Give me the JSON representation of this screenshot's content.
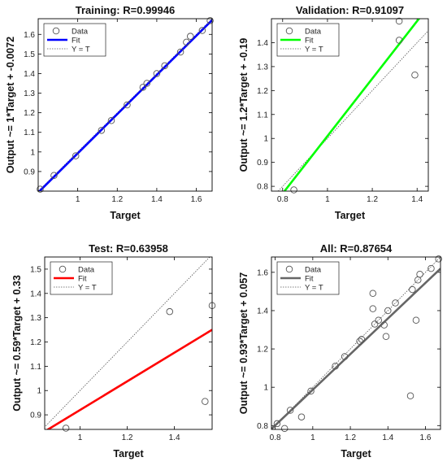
{
  "chart_data": [
    {
      "type": "scatter",
      "title": "Training: R=0.99946",
      "xlabel": "Target",
      "ylabel": "Output ~= 1*Target + -0.0072",
      "xlim": [
        0.8,
        1.68
      ],
      "ylim": [
        0.8,
        1.68
      ],
      "xticks": [
        1,
        1.2,
        1.4,
        1.6
      ],
      "yticks": [
        0.9,
        1,
        1.1,
        1.2,
        1.3,
        1.4,
        1.5,
        1.6
      ],
      "fit": {
        "slope": 1.0,
        "intercept": -0.0072,
        "color": "#0000ff"
      },
      "legend": {
        "position": "top-left",
        "entries": [
          "Data",
          "Fit",
          "Y = T"
        ]
      },
      "points": {
        "x": [
          0.81,
          0.88,
          0.99,
          1.12,
          1.17,
          1.25,
          1.33,
          1.35,
          1.4,
          1.44,
          1.52,
          1.55,
          1.57,
          1.63,
          1.67
        ],
        "y": [
          0.81,
          0.88,
          0.98,
          1.11,
          1.16,
          1.24,
          1.33,
          1.35,
          1.4,
          1.44,
          1.51,
          1.56,
          1.59,
          1.62,
          1.67
        ]
      }
    },
    {
      "type": "scatter",
      "title": "Validation: R=0.91097",
      "xlabel": "Target",
      "ylabel": "Output ~= 1.2*Target + -0.19",
      "xlim": [
        0.75,
        1.45
      ],
      "ylim": [
        0.78,
        1.5
      ],
      "xticks": [
        0.8,
        1,
        1.2,
        1.4
      ],
      "yticks": [
        0.8,
        0.9,
        1,
        1.1,
        1.2,
        1.3,
        1.4
      ],
      "fit": {
        "slope": 1.2,
        "intercept": -0.19,
        "color": "#00ff00"
      },
      "legend": {
        "position": "top-left",
        "entries": [
          "Data",
          "Fit",
          "Y = T"
        ]
      },
      "points": {
        "x": [
          0.85,
          1.32,
          1.32,
          1.39
        ],
        "y": [
          0.785,
          1.49,
          1.41,
          1.265
        ]
      }
    },
    {
      "type": "scatter",
      "title": "Test: R=0.63958",
      "xlabel": "Target",
      "ylabel": "Output ~= 0.59*Target + 0.33",
      "xlim": [
        0.85,
        1.56
      ],
      "ylim": [
        0.84,
        1.55
      ],
      "xticks": [
        1,
        1.2,
        1.4
      ],
      "yticks": [
        0.9,
        1,
        1.1,
        1.2,
        1.3,
        1.4,
        1.5
      ],
      "fit": {
        "slope": 0.59,
        "intercept": 0.33,
        "color": "#ff0000"
      },
      "legend": {
        "position": "top-left",
        "entries": [
          "Data",
          "Fit",
          "Y = T"
        ]
      },
      "points": {
        "x": [
          0.94,
          1.38,
          1.53,
          1.56
        ],
        "y": [
          0.845,
          1.325,
          0.955,
          1.35
        ]
      }
    },
    {
      "type": "scatter",
      "title": "All: R=0.87654",
      "xlabel": "Target",
      "ylabel": "Output ~= 0.93*Target + 0.057",
      "xlim": [
        0.78,
        1.68
      ],
      "ylim": [
        0.78,
        1.68
      ],
      "xticks": [
        0.8,
        1,
        1.2,
        1.4,
        1.6
      ],
      "yticks": [
        0.8,
        1,
        1.2,
        1.4,
        1.6
      ],
      "fit": {
        "slope": 0.93,
        "intercept": 0.057,
        "color": "#666666"
      },
      "legend": {
        "position": "top-left",
        "entries": [
          "Data",
          "Fit",
          "Y = T"
        ]
      },
      "points": {
        "x": [
          0.81,
          0.85,
          0.88,
          0.94,
          0.99,
          1.12,
          1.17,
          1.25,
          1.26,
          1.32,
          1.32,
          1.33,
          1.35,
          1.38,
          1.39,
          1.4,
          1.44,
          1.52,
          1.53,
          1.55,
          1.56,
          1.57,
          1.63,
          1.67
        ],
        "y": [
          0.81,
          0.785,
          0.88,
          0.845,
          0.98,
          1.11,
          1.16,
          1.24,
          1.25,
          1.49,
          1.41,
          1.33,
          1.35,
          1.325,
          1.265,
          1.4,
          1.44,
          0.955,
          1.51,
          1.35,
          1.56,
          1.59,
          1.62,
          1.67
        ]
      }
    }
  ],
  "colors": {
    "axes": "#000000",
    "identity_line": "#555555",
    "marker_edge": "#555555"
  }
}
